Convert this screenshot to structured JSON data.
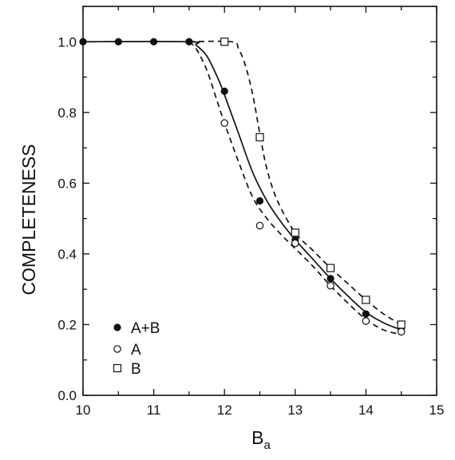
{
  "chart_data": {
    "type": "line",
    "title": "",
    "xlabel": "B",
    "xlabel_subscript": "a",
    "ylabel": "COMPLETENESS",
    "xlim": [
      10,
      15
    ],
    "ylim": [
      0.0,
      1.1
    ],
    "xticks": [
      "10",
      "11",
      "12",
      "13",
      "14",
      "15"
    ],
    "yticks": [
      "0.0",
      "0.2",
      "0.4",
      "0.6",
      "0.8",
      "1.0"
    ],
    "grid": false,
    "legend_position": "bottom-left",
    "series": [
      {
        "name": "A+B",
        "marker": "filled-circle",
        "line_style": "solid",
        "points": [
          [
            10,
            1.0
          ],
          [
            10.5,
            1.0
          ],
          [
            11,
            1.0
          ],
          [
            11.5,
            1.0
          ],
          [
            12,
            0.86
          ],
          [
            12.5,
            0.55
          ],
          [
            13,
            0.44
          ],
          [
            13.5,
            0.33
          ],
          [
            14,
            0.23
          ],
          [
            14.5,
            0.19
          ]
        ]
      },
      {
        "name": "A",
        "marker": "open-circle",
        "line_style": "dashed",
        "points": [
          [
            12,
            0.77
          ],
          [
            12.5,
            0.48
          ],
          [
            13,
            0.43
          ],
          [
            13.5,
            0.31
          ],
          [
            14,
            0.21
          ],
          [
            14.5,
            0.18
          ]
        ]
      },
      {
        "name": "B",
        "marker": "open-square",
        "line_style": "dashed",
        "points": [
          [
            12,
            1.0
          ],
          [
            12.5,
            0.73
          ],
          [
            13,
            0.46
          ],
          [
            13.5,
            0.36
          ],
          [
            14,
            0.27
          ],
          [
            14.5,
            0.2
          ]
        ]
      }
    ],
    "curves": [
      {
        "series": "A+B",
        "line_style": "solid",
        "points": [
          [
            10,
            1.0
          ],
          [
            11.5,
            1.0
          ],
          [
            11.6,
            0.99
          ],
          [
            11.75,
            0.96
          ],
          [
            11.9,
            0.9
          ],
          [
            12.0,
            0.85
          ],
          [
            12.2,
            0.74
          ],
          [
            12.4,
            0.63
          ],
          [
            12.6,
            0.55
          ],
          [
            12.8,
            0.49
          ],
          [
            13.0,
            0.44
          ],
          [
            13.25,
            0.385
          ],
          [
            13.5,
            0.33
          ],
          [
            13.75,
            0.28
          ],
          [
            14.0,
            0.235
          ],
          [
            14.25,
            0.205
          ],
          [
            14.5,
            0.185
          ]
        ]
      },
      {
        "series": "A",
        "line_style": "dashed",
        "points": [
          [
            11.5,
            1.0
          ],
          [
            11.6,
            0.98
          ],
          [
            11.75,
            0.92
          ],
          [
            11.9,
            0.83
          ],
          [
            12.0,
            0.77
          ],
          [
            12.2,
            0.66
          ],
          [
            12.4,
            0.56
          ],
          [
            12.6,
            0.5
          ],
          [
            12.8,
            0.455
          ],
          [
            13.0,
            0.415
          ],
          [
            13.25,
            0.365
          ],
          [
            13.5,
            0.31
          ],
          [
            13.75,
            0.26
          ],
          [
            14.0,
            0.215
          ],
          [
            14.25,
            0.185
          ],
          [
            14.5,
            0.172
          ]
        ]
      },
      {
        "series": "B",
        "line_style": "dashed",
        "points": [
          [
            11.5,
            1.0
          ],
          [
            12.1,
            1.0
          ],
          [
            12.2,
            0.98
          ],
          [
            12.3,
            0.93
          ],
          [
            12.4,
            0.85
          ],
          [
            12.5,
            0.74
          ],
          [
            12.6,
            0.64
          ],
          [
            12.75,
            0.55
          ],
          [
            13.0,
            0.46
          ],
          [
            13.25,
            0.41
          ],
          [
            13.5,
            0.36
          ],
          [
            13.75,
            0.315
          ],
          [
            14.0,
            0.27
          ],
          [
            14.25,
            0.23
          ],
          [
            14.5,
            0.2
          ]
        ]
      }
    ]
  }
}
